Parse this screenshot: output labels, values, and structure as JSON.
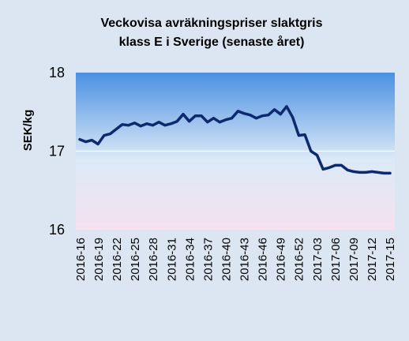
{
  "chart_data": {
    "type": "line",
    "title_lines": [
      "Veckovisa avräkningspriser slaktgris",
      "klass E i Sverige (senaste året)"
    ],
    "ylabel": "SEK/kg",
    "xlabel": "",
    "ylim": [
      16,
      18
    ],
    "yticks": [
      "16",
      "17",
      "18"
    ],
    "grid": true,
    "legend": "none",
    "colors": {
      "background": "#dce6f2",
      "plot_top": "#4a90e2",
      "plot_mid": "#dbe9f7",
      "plot_bottom": "#f5e1ef",
      "line": "#0d2a6e",
      "gridline": "#ffffff"
    },
    "x_tick_labels": [
      "2016-16",
      "2016-19",
      "2016-22",
      "2016-25",
      "2016-28",
      "2016-31",
      "2016-34",
      "2016-37",
      "2016-40",
      "2016-43",
      "2016-46",
      "2016-49",
      "2016-52",
      "2017-03",
      "2017-06",
      "2017-09",
      "2017-12",
      "2017-15"
    ],
    "series": [
      {
        "values": [
          17.15,
          17.12,
          17.14,
          17.09,
          17.2,
          17.22,
          17.28,
          17.34,
          17.33,
          17.36,
          17.32,
          17.35,
          17.33,
          17.37,
          17.33,
          17.35,
          17.38,
          17.47,
          17.38,
          17.45,
          17.45,
          17.37,
          17.42,
          17.37,
          17.4,
          17.42,
          17.51,
          17.48,
          17.46,
          17.42,
          17.45,
          17.46,
          17.53,
          17.47,
          17.57,
          17.43,
          17.2,
          17.21,
          17.0,
          16.95,
          16.77,
          16.79,
          16.82,
          16.82,
          16.76,
          16.74,
          16.73,
          16.73,
          16.74,
          16.73,
          16.72,
          16.72
        ]
      }
    ]
  }
}
